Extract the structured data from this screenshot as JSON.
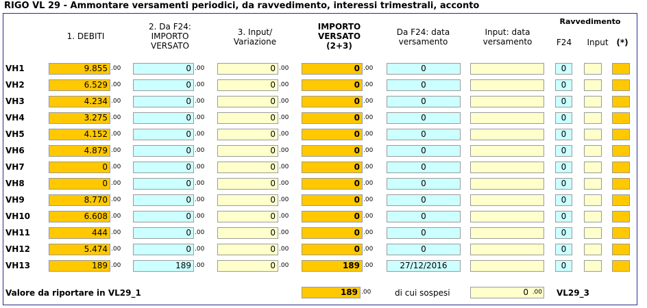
{
  "title": "RIGO VL 29 - Ammontare versamenti periodici, da ravvedimento, interessi trimestrali, acconto",
  "headers": {
    "debiti": "1. DEBITI",
    "da_f24_importo_1": "2. Da F24:",
    "da_f24_importo_2": "IMPORTO",
    "da_f24_importo_3": "VERSATO",
    "input_var_1": "3. Input/",
    "input_var_2": "Variazione",
    "importo_versato_1": "IMPORTO",
    "importo_versato_2": "VERSATO",
    "importo_versato_3": "(2+3)",
    "data_f24_1": "Da F24: data",
    "data_f24_2": "versamento",
    "data_input_1": "Input: data",
    "data_input_2": "versamento",
    "ravvedimento": "Ravvedimento",
    "rav_f24": "F24",
    "rav_input": "Input",
    "rav_star": "(*)"
  },
  "decimal": ".00",
  "rows": [
    {
      "label": "VH1",
      "debito": "9.855",
      "f24": "0",
      "input": "0",
      "versato": "0",
      "data_f24": "0",
      "data_input": "",
      "rav_f24": "0"
    },
    {
      "label": "VH2",
      "debito": "6.529",
      "f24": "0",
      "input": "0",
      "versato": "0",
      "data_f24": "0",
      "data_input": "",
      "rav_f24": "0"
    },
    {
      "label": "VH3",
      "debito": "4.234",
      "f24": "0",
      "input": "0",
      "versato": "0",
      "data_f24": "0",
      "data_input": "",
      "rav_f24": "0"
    },
    {
      "label": "VH4",
      "debito": "3.275",
      "f24": "0",
      "input": "0",
      "versato": "0",
      "data_f24": "0",
      "data_input": "",
      "rav_f24": "0"
    },
    {
      "label": "VH5",
      "debito": "4.152",
      "f24": "0",
      "input": "0",
      "versato": "0",
      "data_f24": "0",
      "data_input": "",
      "rav_f24": "0"
    },
    {
      "label": "VH6",
      "debito": "4.879",
      "f24": "0",
      "input": "0",
      "versato": "0",
      "data_f24": "0",
      "data_input": "",
      "rav_f24": "0"
    },
    {
      "label": "VH7",
      "debito": "0",
      "f24": "0",
      "input": "0",
      "versato": "0",
      "data_f24": "0",
      "data_input": "",
      "rav_f24": "0"
    },
    {
      "label": "VH8",
      "debito": "0",
      "f24": "0",
      "input": "0",
      "versato": "0",
      "data_f24": "0",
      "data_input": "",
      "rav_f24": "0"
    },
    {
      "label": "VH9",
      "debito": "8.770",
      "f24": "0",
      "input": "0",
      "versato": "0",
      "data_f24": "0",
      "data_input": "",
      "rav_f24": "0"
    },
    {
      "label": "VH10",
      "debito": "6.608",
      "f24": "0",
      "input": "0",
      "versato": "0",
      "data_f24": "0",
      "data_input": "",
      "rav_f24": "0"
    },
    {
      "label": "VH11",
      "debito": "444",
      "f24": "0",
      "input": "0",
      "versato": "0",
      "data_f24": "0",
      "data_input": "",
      "rav_f24": "0"
    },
    {
      "label": "VH12",
      "debito": "5.474",
      "f24": "0",
      "input": "0",
      "versato": "0",
      "data_f24": "0",
      "data_input": "",
      "rav_f24": "0"
    },
    {
      "label": "VH13",
      "debito": "189",
      "f24": "189",
      "input": "0",
      "versato": "189",
      "data_f24": "27/12/2016",
      "data_input": "",
      "rav_f24": "0"
    }
  ],
  "footer": {
    "label": "Valore da riportare in VL29_1",
    "total": "189",
    "sospesi_label": "di cui sospesi",
    "sospesi_value": "0",
    "sospesi_decimal": ".00",
    "code": "VL29_3"
  },
  "colors": {
    "orange": "#ffc800",
    "cyan": "#ccffff",
    "light_yellow": "#ffffcc",
    "border": "#2a2a8a"
  }
}
